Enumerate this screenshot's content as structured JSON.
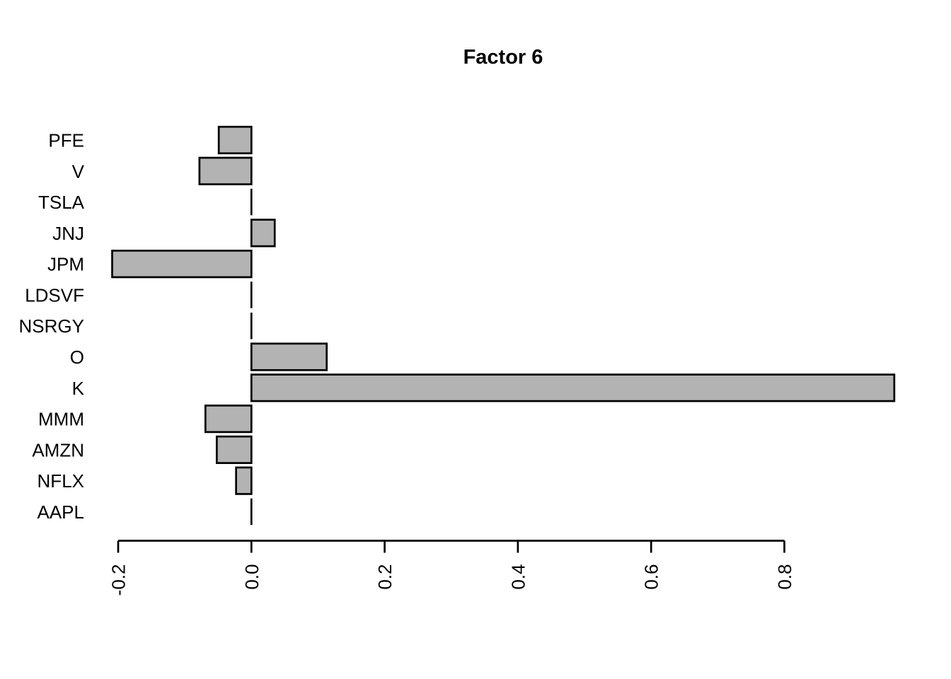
{
  "colors": {
    "background": "#ffffff",
    "bar_fill": "#b3b3b3",
    "bar_border": "#000000",
    "axis": "#000000",
    "text": "#000000"
  },
  "chart_data": {
    "type": "bar",
    "orientation": "horizontal",
    "title": "Factor 6",
    "categories": [
      "PFE",
      "V",
      "TSLA",
      "JNJ",
      "JPM",
      "LDSVF",
      "NSRGY",
      "O",
      "K",
      "MMM",
      "AMZN",
      "NFLX",
      "AAPL"
    ],
    "values": [
      -0.049,
      -0.078,
      0,
      0.035,
      -0.209,
      0,
      0,
      0.113,
      0.965,
      -0.069,
      -0.052,
      -0.023,
      0
    ],
    "x_ticks": [
      -0.2,
      0,
      0.2,
      0.4,
      0.6,
      0.8
    ],
    "x_tick_labels": [
      "-0.2",
      "0.0",
      "0.2",
      "0.4",
      "0.6",
      "0.8"
    ],
    "xlim": [
      -0.2,
      0.8
    ],
    "ylabel": "",
    "xlabel": "",
    "grid": false,
    "legend": "none"
  }
}
